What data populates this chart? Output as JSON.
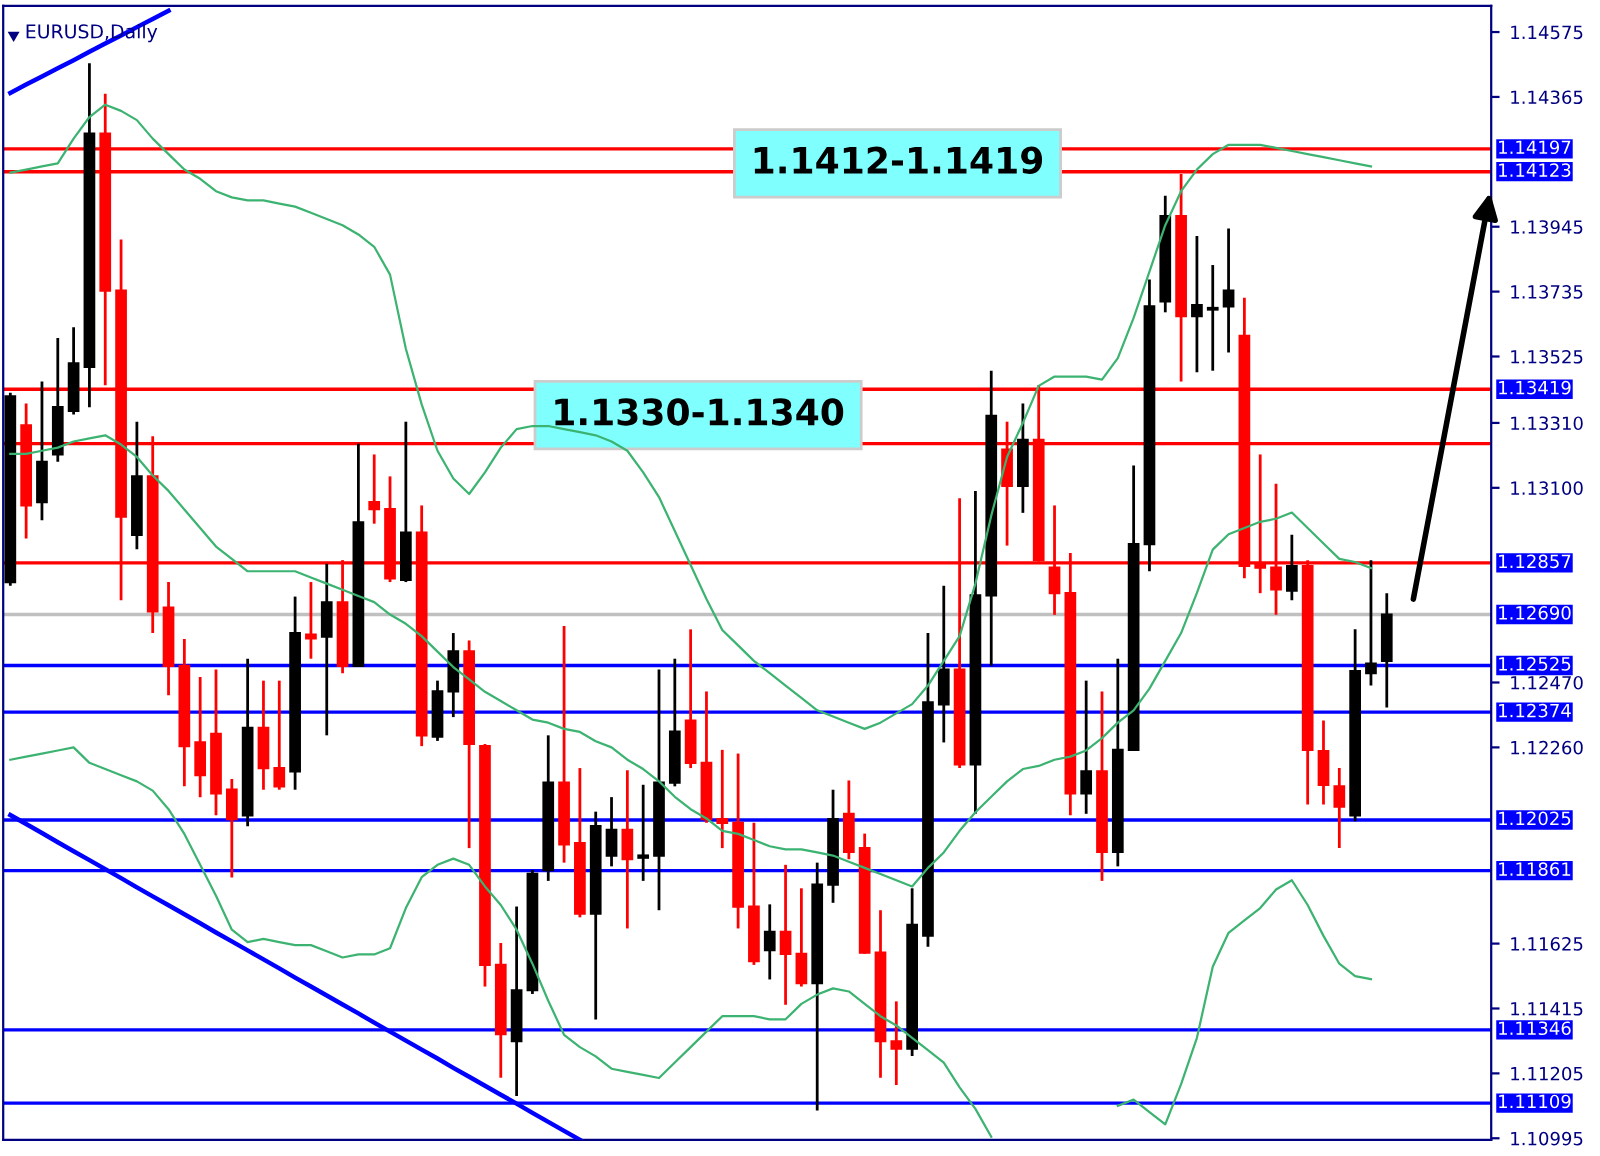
{
  "chart_data": {
    "type": "candlestick",
    "title": "EURUSD,Daily",
    "tick_labels": "y",
    "categories": [
      null,
      null,
      null,
      null,
      null,
      null,
      null,
      null,
      null,
      null,
      null,
      null,
      null,
      null,
      null,
      null,
      null,
      null,
      null,
      null,
      null,
      null,
      null,
      null,
      null,
      null,
      null,
      null,
      null,
      null,
      null,
      null,
      null,
      null,
      null,
      null,
      null,
      null,
      null,
      null,
      null,
      null,
      null,
      null,
      null,
      null,
      null,
      null,
      null,
      null,
      null,
      null,
      null,
      null,
      null,
      null,
      null,
      null,
      null,
      null,
      null,
      null,
      null,
      null,
      null,
      null,
      null,
      null,
      null,
      null,
      null,
      null,
      null,
      null,
      null,
      null,
      null,
      null,
      null,
      null,
      null,
      null,
      null,
      null,
      null,
      null,
      null,
      null
    ],
    "ohlc": [
      [
        1.12795,
        1.13408,
        1.12783,
        1.13396
      ],
      [
        1.13302,
        1.13373,
        1.12936,
        1.13043
      ],
      [
        1.13054,
        1.13444,
        1.12995,
        1.13184
      ],
      [
        1.13208,
        1.13585,
        1.13184,
        1.13361
      ],
      [
        1.13349,
        1.1362,
        1.13337,
        1.13503
      ],
      [
        1.13491,
        1.14474,
        1.13361,
        1.14246
      ],
      [
        1.14246,
        1.14375,
        1.13432,
        1.13738
      ],
      [
        1.13738,
        1.13904,
        1.12736,
        1.13007
      ],
      [
        1.12948,
        1.13314,
        1.12901,
        1.13137
      ],
      [
        1.13137,
        1.13267,
        1.1263,
        1.127
      ],
      [
        1.12712,
        1.12795,
        1.12429,
        1.12524
      ],
      [
        1.12524,
        1.12611,
        1.12134,
        1.12264
      ],
      [
        1.12276,
        1.12488,
        1.12099,
        1.1217
      ],
      [
        1.12304,
        1.12512,
        1.1204,
        1.12111
      ],
      [
        1.12123,
        1.12158,
        1.11839,
        1.12028
      ],
      [
        1.1204,
        1.12547,
        1.12005,
        1.12323
      ],
      [
        1.12323,
        1.12476,
        1.12123,
        1.12193
      ],
      [
        1.12193,
        1.12476,
        1.12123,
        1.12134
      ],
      [
        1.12182,
        1.12748,
        1.12123,
        1.1263
      ],
      [
        1.12625,
        1.12795,
        1.12547,
        1.12613
      ],
      [
        1.12618,
        1.12854,
        1.12299,
        1.12729
      ],
      [
        1.12729,
        1.12866,
        1.125,
        1.12524
      ],
      [
        1.12524,
        1.13243,
        1.12524,
        1.12988
      ],
      [
        1.13054,
        1.13208,
        1.12984,
        1.13031
      ],
      [
        1.13031,
        1.13137,
        1.12795,
        1.12807
      ],
      [
        1.12802,
        1.13314,
        1.12795,
        1.12955
      ],
      [
        1.12955,
        1.13043,
        1.12264,
        1.12299
      ],
      [
        1.12295,
        1.12476,
        1.12281,
        1.12441
      ],
      [
        1.12441,
        1.1263,
        1.12358,
        1.12571
      ],
      [
        1.12571,
        1.12606,
        1.11934,
        1.12271
      ],
      [
        1.12264,
        1.12271,
        1.11486,
        1.11556
      ],
      [
        1.11556,
        1.11627,
        1.11191,
        1.11332
      ],
      [
        1.11309,
        1.11745,
        1.11132,
        1.11474
      ],
      [
        1.11474,
        1.11863,
        1.11462,
        1.11851
      ],
      [
        1.11863,
        1.12299,
        1.11828,
        1.12146
      ],
      [
        1.12146,
        1.12653,
        1.11887,
        1.11946
      ],
      [
        1.1195,
        1.12193,
        1.1171,
        1.11722
      ],
      [
        1.11722,
        1.12052,
        1.11379,
        1.12005
      ],
      [
        1.1191,
        1.12099,
        1.11875,
        1.11993
      ],
      [
        1.11993,
        1.12186,
        1.11674,
        1.11898
      ],
      [
        1.11903,
        1.12139,
        1.11828,
        1.1191
      ],
      [
        1.1191,
        1.12512,
        1.11733,
        1.12146
      ],
      [
        1.12146,
        1.12547,
        1.12134,
        1.12311
      ],
      [
        1.12347,
        1.12642,
        1.12193,
        1.1221
      ],
      [
        1.1221,
        1.12441,
        1.12016,
        1.12028
      ],
      [
        1.12028,
        1.12252,
        1.11934,
        1.12016
      ],
      [
        1.12016,
        1.1224,
        1.11674,
        1.11745
      ],
      [
        1.11745,
        1.12016,
        1.11556,
        1.11568
      ],
      [
        1.11604,
        1.11752,
        1.11509,
        1.11663
      ],
      [
        1.11663,
        1.1188,
        1.11427,
        1.11592
      ],
      [
        1.11592,
        1.11804,
        1.11486,
        1.11497
      ],
      [
        1.11497,
        1.11887,
        1.11085,
        1.11816
      ],
      [
        1.11816,
        1.12123,
        1.11757,
        1.12028
      ],
      [
        1.12045,
        1.12153,
        1.11898,
        1.11922
      ],
      [
        1.11934,
        1.11981,
        1.11592,
        1.11596
      ],
      [
        1.11596,
        1.11733,
        1.11191,
        1.11309
      ],
      [
        1.11309,
        1.11438,
        1.11167,
        1.11285
      ],
      [
        1.11285,
        1.11804,
        1.11261,
        1.11686
      ],
      [
        1.11651,
        1.1263,
        1.11615,
        1.12406
      ],
      [
        1.12399,
        1.12783,
        1.12276,
        1.12512
      ],
      [
        1.12512,
        1.13066,
        1.12193,
        1.12205
      ],
      [
        1.12205,
        1.1309,
        1.12045,
        1.12752
      ],
      [
        1.12752,
        1.13479,
        1.12524,
        1.13333
      ],
      [
        1.13224,
        1.13314,
        1.12913,
        1.13106
      ],
      [
        1.13106,
        1.13373,
        1.13019,
        1.13255
      ],
      [
        1.13255,
        1.13432,
        1.12861,
        1.12866
      ],
      [
        1.12842,
        1.13043,
        1.12689,
        1.12759
      ],
      [
        1.12759,
        1.12889,
        1.1204,
        1.12111
      ],
      [
        1.12111,
        1.12476,
        1.12045,
        1.12182
      ],
      [
        1.12182,
        1.12441,
        1.11828,
        1.11922
      ],
      [
        1.11922,
        1.12547,
        1.11875,
        1.12252
      ],
      [
        1.12252,
        1.13172,
        1.12252,
        1.12918
      ],
      [
        1.12918,
        1.13774,
        1.1283,
        1.13687
      ],
      [
        1.13703,
        1.14045,
        1.13668,
        1.13979
      ],
      [
        1.13979,
        1.14116,
        1.13444,
        1.13656
      ],
      [
        1.13656,
        1.13915,
        1.13474,
        1.13691
      ],
      [
        1.13677,
        1.13821,
        1.13479,
        1.13682
      ],
      [
        1.13687,
        1.13939,
        1.13538,
        1.13738
      ],
      [
        1.13592,
        1.13715,
        1.12807,
        1.12847
      ],
      [
        1.12851,
        1.13208,
        1.12759,
        1.12842
      ],
      [
        1.12842,
        1.13113,
        1.12689,
        1.12771
      ],
      [
        1.12767,
        1.12948,
        1.12736,
        1.12847
      ],
      [
        1.12847,
        1.12866,
        1.12075,
        1.12252
      ],
      [
        1.12248,
        1.12347,
        1.12075,
        1.12139
      ],
      [
        1.12134,
        1.12193,
        1.11934,
        1.12068
      ],
      [
        1.1204,
        1.12642,
        1.12021,
        1.12507
      ],
      [
        1.125,
        1.12866,
        1.1246,
        1.12531
      ],
      [
        1.1254,
        1.12759,
        1.12389,
        1.1269
      ]
    ],
    "colors": [
      "#000000",
      "#ff0000",
      "#000000",
      "#000000",
      "#000000",
      "#000000",
      "#ff0000",
      "#ff0000",
      "#000000",
      "#ff0000",
      "#ff0000",
      "#ff0000",
      "#ff0000",
      "#ff0000",
      "#ff0000",
      "#000000",
      "#ff0000",
      "#ff0000",
      "#000000",
      "#ff0000",
      "#000000",
      "#ff0000",
      "#000000",
      "#ff0000",
      "#ff0000",
      "#000000",
      "#ff0000",
      "#000000",
      "#000000",
      "#ff0000",
      "#ff0000",
      "#ff0000",
      "#000000",
      "#000000",
      "#000000",
      "#ff0000",
      "#ff0000",
      "#000000",
      "#000000",
      "#ff0000",
      "#000000",
      "#000000",
      "#000000",
      "#ff0000",
      "#ff0000",
      "#ff0000",
      "#ff0000",
      "#ff0000",
      "#000000",
      "#ff0000",
      "#ff0000",
      "#000000",
      "#000000",
      "#ff0000",
      "#ff0000",
      "#ff0000",
      "#ff0000",
      "#000000",
      "#000000",
      "#000000",
      "#ff0000",
      "#000000",
      "#000000",
      "#ff0000",
      "#000000",
      "#ff0000",
      "#ff0000",
      "#ff0000",
      "#000000",
      "#ff0000",
      "#000000",
      "#000000",
      "#000000",
      "#000000",
      "#ff0000",
      "#000000",
      "#000000",
      "#000000",
      "#ff0000",
      "#ff0000",
      "#ff0000",
      "#000000",
      "#ff0000",
      "#ff0000",
      "#ff0000",
      "#000000",
      "#000000",
      "#000000"
    ],
    "series": [
      {
        "type": "line",
        "color": "#3cb371",
        "values": [
          1.1412,
          1.1413,
          1.1414,
          1.1415,
          1.1423,
          1.143,
          1.1434,
          1.1432,
          1.1429,
          1.1423,
          1.1418,
          1.1413,
          1.141,
          1.1406,
          1.1404,
          1.1403,
          1.1403,
          1.1402,
          1.1401,
          1.1399,
          1.1397,
          1.1395,
          1.1392,
          1.1388,
          1.1379,
          1.1355,
          1.1337,
          1.1322,
          1.1313,
          1.1308,
          1.1315,
          1.1323,
          1.1329,
          1.133,
          1.133,
          1.1329,
          1.1328,
          1.1327,
          1.1325,
          1.1322,
          1.1315,
          1.1307,
          1.1296,
          1.1285,
          1.1274,
          1.1264,
          1.1259,
          1.1254,
          1.125,
          1.1246,
          1.1242,
          1.1238,
          1.1236,
          1.1234,
          1.1232,
          1.1234,
          1.1237,
          1.124,
          1.1246,
          1.1254,
          1.1262,
          1.1279,
          1.1301,
          1.132,
          1.1331,
          1.1343,
          1.1346,
          1.1346,
          1.1346,
          1.1345,
          1.1352,
          1.1365,
          1.138,
          1.1395,
          1.1406,
          1.1413,
          1.1418,
          1.1421,
          1.1421,
          1.1421,
          1.142,
          1.1419,
          1.1418,
          1.1417,
          1.1416,
          1.1415,
          1.1414,
          null
        ]
      },
      {
        "type": "line",
        "color": "#3cb371",
        "values": [
          1.1321,
          1.1321,
          1.1322,
          1.1323,
          1.1325,
          1.1326,
          1.1327,
          1.1324,
          1.132,
          1.1314,
          1.1309,
          1.1303,
          1.1297,
          1.1291,
          1.1287,
          1.1283,
          1.1283,
          1.1283,
          1.1283,
          1.1281,
          1.1279,
          1.1277,
          1.1275,
          1.1273,
          1.1269,
          1.1266,
          1.1262,
          1.1257,
          1.1252,
          1.1248,
          1.1244,
          1.1241,
          1.1238,
          1.1235,
          1.1234,
          1.1232,
          1.1231,
          1.1228,
          1.1226,
          1.1222,
          1.1219,
          1.1215,
          1.121,
          1.1206,
          1.1203,
          1.1199,
          1.1198,
          1.1196,
          1.1194,
          1.1193,
          1.1193,
          1.1192,
          1.1191,
          1.1189,
          1.1187,
          1.1185,
          1.1183,
          1.1181,
          1.1187,
          1.1192,
          1.1199,
          1.1205,
          1.121,
          1.1215,
          1.1219,
          1.122,
          1.1222,
          1.1223,
          1.1225,
          1.1229,
          1.1234,
          1.1238,
          1.1245,
          1.1254,
          1.1263,
          1.1276,
          1.129,
          1.1295,
          1.1297,
          1.1299,
          1.13,
          1.1302,
          1.1297,
          1.1292,
          1.1287,
          1.1286,
          1.1284,
          null
        ]
      },
      {
        "type": "line",
        "color": "#3cb371",
        "values": [
          1.1222,
          1.1223,
          1.1224,
          1.1225,
          1.1226,
          1.1221,
          1.1219,
          1.1217,
          1.1215,
          1.1212,
          1.1206,
          1.1198,
          1.1188,
          1.1178,
          1.1167,
          1.1163,
          1.1164,
          1.1163,
          1.1162,
          1.1162,
          1.116,
          1.1158,
          1.1159,
          1.1159,
          1.1161,
          1.1174,
          1.1184,
          1.1188,
          1.119,
          1.1188,
          1.1181,
          1.1175,
          1.1167,
          1.1156,
          1.1144,
          1.1133,
          1.1129,
          1.1126,
          1.1122,
          1.1121,
          1.112,
          1.1119,
          1.1124,
          1.1129,
          1.1134,
          1.1139,
          1.1139,
          1.1139,
          1.1138,
          1.1138,
          1.1143,
          1.1146,
          1.1148,
          1.1147,
          1.1143,
          1.1139,
          1.1136,
          1.1132,
          1.1128,
          1.1124,
          1.1116,
          1.1109,
          1.11,
          null,
          null,
          null,
          null,
          null,
          null,
          null,
          1.111,
          1.1112,
          1.1108,
          1.1104,
          1.1117,
          1.1132,
          1.1155,
          1.1166,
          1.117,
          1.1174,
          1.118,
          1.1183,
          1.1175,
          1.1165,
          1.1156,
          1.1152,
          1.1151,
          null
        ]
      },
      {
        "type": "line",
        "color": "#0000ff",
        "values": [
          1.14378,
          1.14405,
          1.14431,
          1.14458,
          1.14484,
          1.14511,
          1.14538,
          1.14564,
          1.14591,
          1.14617,
          1.14644,
          null,
          null,
          null,
          null,
          null,
          null,
          null,
          null,
          null,
          null,
          null,
          null,
          null,
          null,
          null,
          null,
          null,
          null,
          null,
          null,
          null,
          null,
          null,
          null,
          null,
          null,
          null,
          null,
          null,
          null,
          null,
          null,
          null,
          null,
          null,
          null,
          null,
          null,
          null,
          null,
          null,
          null,
          null,
          null,
          null,
          null,
          null,
          null,
          null,
          null,
          null,
          null,
          null,
          null,
          null,
          null,
          null,
          null,
          null,
          null,
          null,
          null,
          null,
          null,
          null,
          null,
          null,
          null,
          null,
          null,
          null,
          null,
          null,
          null,
          null,
          null,
          null
        ]
      },
      {
        "type": "line",
        "color": "#0000ff",
        "values": [
          1.12041,
          1.12012,
          1.11983,
          1.11953,
          1.11924,
          1.11895,
          1.11866,
          1.11837,
          1.11807,
          1.11778,
          1.11749,
          1.1172,
          1.11691,
          1.11661,
          1.11632,
          1.11603,
          1.11574,
          1.11545,
          1.11515,
          1.11486,
          1.11457,
          1.11428,
          1.11399,
          1.11369,
          1.1134,
          1.11311,
          1.11282,
          1.11253,
          1.11223,
          1.11194,
          1.11165,
          1.11136,
          1.11107,
          1.11077,
          1.11048,
          1.11019,
          1.1099,
          null,
          null,
          null,
          null,
          null,
          null,
          null,
          null,
          null,
          null,
          null,
          null,
          null,
          null,
          null,
          null,
          null,
          null,
          null,
          null,
          null,
          null,
          null,
          null,
          null,
          null,
          null,
          null,
          null,
          null,
          null,
          null,
          null,
          null,
          null,
          null,
          null,
          null,
          null,
          null,
          null,
          null,
          null,
          null,
          null,
          null,
          null,
          null,
          null,
          null,
          null
        ]
      }
    ],
    "ref_lines": [
      {
        "axis": "y",
        "value": 1.14197,
        "label": "1.14197",
        "color": "#ff0000"
      },
      {
        "axis": "y",
        "value": 1.14123,
        "label": "1.14123",
        "color": "#ff0000"
      },
      {
        "axis": "y",
        "value": 1.13419,
        "label": "1.13419",
        "color": "#ff0000"
      },
      {
        "axis": "y",
        "value": 1.13243,
        "color": "#ff0000"
      },
      {
        "axis": "y",
        "value": 1.12857,
        "label": "1.12857",
        "color": "#ff0000"
      },
      {
        "axis": "y",
        "value": 1.1269,
        "label": "1.12690",
        "color": "#c0c0c0"
      },
      {
        "axis": "y",
        "value": 1.12525,
        "label": "1.12525",
        "color": "#0000ff"
      },
      {
        "axis": "y",
        "value": 1.12374,
        "label": "1.12374",
        "color": "#0000ff"
      },
      {
        "axis": "y",
        "value": 1.12025,
        "label": "1.12025",
        "color": "#0000ff"
      },
      {
        "axis": "y",
        "value": 1.11861,
        "label": "1.11861",
        "color": "#0000ff"
      },
      {
        "axis": "y",
        "value": 1.11346,
        "label": "1.11346",
        "color": "#0000ff"
      },
      {
        "axis": "y",
        "value": 1.11109,
        "label": "1.11109",
        "color": "#0000ff"
      }
    ],
    "annotations": [
      "1.1412-1.1419",
      "1.1330-1.1340"
    ],
    "ylim": [
      1.1099,
      1.1466
    ],
    "yticks": [
      1.14575,
      1.14365,
      1.13945,
      1.13735,
      1.13525,
      {
        "value": 1.1331,
        "label": "1.13310"
      },
      {
        "value": 1.131,
        "label": "1.13100"
      },
      {
        "value": 1.1247,
        "label": "1.12470"
      },
      {
        "value": 1.1226,
        "label": "1.12260"
      },
      1.11625,
      1.11415,
      1.11205,
      1.10995
    ]
  }
}
